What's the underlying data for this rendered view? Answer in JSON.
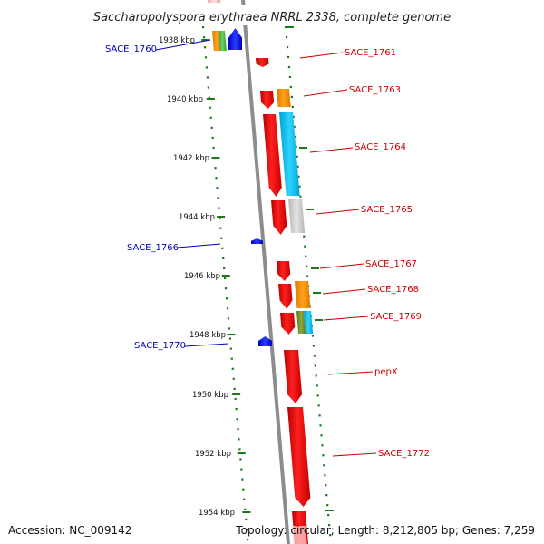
{
  "title": "Saccharopolyspora erythraea NRRL 2338, complete genome",
  "accession_text": "Accession: NC_009142",
  "topology_text": "Topology: circular; Length: 8,212,805 bp; Genes: 7,259",
  "colors": {
    "backbone": "#8c8c8c",
    "dots": "#1a7a1a",
    "label_forward": "#cc0000",
    "label_reverse": "#0000bb"
  },
  "chart_data": {
    "type": "genome-map-linear-view",
    "ticks": [
      {
        "label": "1938 kbp",
        "kbp": 1938
      },
      {
        "label": "1940 kbp",
        "kbp": 1940
      },
      {
        "label": "1942 kbp",
        "kbp": 1942
      },
      {
        "label": "1944 kbp",
        "kbp": 1944
      },
      {
        "label": "1946 kbp",
        "kbp": 1946
      },
      {
        "label": "1948 kbp",
        "kbp": 1948
      },
      {
        "label": "1950 kbp",
        "kbp": 1950
      },
      {
        "label": "1952 kbp",
        "kbp": 1952
      },
      {
        "label": "1954 kbp",
        "kbp": 1954
      }
    ],
    "gene_labels": [
      {
        "name": "SACE_1760",
        "strand": "reverse"
      },
      {
        "name": "SACE_1761",
        "strand": "forward"
      },
      {
        "name": "SACE_1763",
        "strand": "forward"
      },
      {
        "name": "SACE_1764",
        "strand": "forward"
      },
      {
        "name": "SACE_1765",
        "strand": "forward"
      },
      {
        "name": "SACE_1766",
        "strand": "reverse"
      },
      {
        "name": "SACE_1767",
        "strand": "forward"
      },
      {
        "name": "SACE_1768",
        "strand": "forward"
      },
      {
        "name": "SACE_1769",
        "strand": "forward"
      },
      {
        "name": "SACE_1770",
        "strand": "reverse"
      },
      {
        "name": "pepX",
        "strand": "forward"
      },
      {
        "name": "SACE_1772",
        "strand": "forward"
      }
    ]
  }
}
